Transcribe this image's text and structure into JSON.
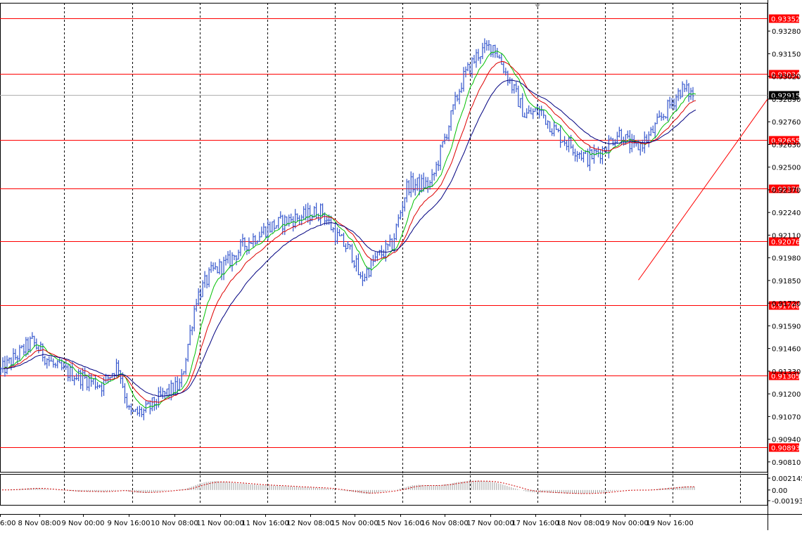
{
  "chart_data": [
    {
      "type": "candlestick",
      "yaxis": {
        "ylim": [
          0.90753,
          0.93442
        ],
        "ticks": [
          "0.93280",
          "0.93150",
          "0.93020",
          "0.92890",
          "0.92760",
          "0.92630",
          "0.92500",
          "0.92370",
          "0.92240",
          "0.92110",
          "0.91980",
          "0.91850",
          "0.91720",
          "0.91590",
          "0.91460",
          "0.91330",
          "0.91200",
          "0.91070",
          "0.90940",
          "0.90810"
        ],
        "current_price": "0.92915"
      },
      "xaxis": {
        "ticks": [
          "6:00",
          "8 Nov 08:00",
          "9 Nov 00:00",
          "9 Nov 16:00",
          "10 Nov 08:00",
          "11 Nov 00:00",
          "11 Nov 16:00",
          "12 Nov 08:00",
          "15 Nov 00:00",
          "15 Nov 16:00",
          "16 Nov 08:00",
          "17 Nov 00:00",
          "17 Nov 16:00",
          "18 Nov 08:00",
          "19 Nov 00:00",
          "19 Nov 16:00"
        ]
      },
      "horizontal_levels": [
        "0.93352",
        "0.93034",
        "0.92655",
        "0.92378",
        "0.92076",
        "0.91708",
        "0.91305",
        "0.90893"
      ],
      "level_values": [
        0.93352,
        0.93034,
        0.92655,
        0.92378,
        0.92076,
        0.91708,
        0.91305,
        0.90893
      ],
      "trendline": [
        [
          0.918525,
          0.915
        ],
        [
          0.9289,
          0.985
        ]
      ],
      "close_anchors": [
        [
          0,
          0.9133
        ],
        [
          0.04,
          0.915
        ],
        [
          0.07,
          0.9135
        ],
        [
          0.1,
          0.913
        ],
        [
          0.13,
          0.9125
        ],
        [
          0.15,
          0.9137
        ],
        [
          0.165,
          0.9108
        ],
        [
          0.185,
          0.911
        ],
        [
          0.21,
          0.912
        ],
        [
          0.23,
          0.9125
        ],
        [
          0.25,
          0.9175
        ],
        [
          0.27,
          0.919
        ],
        [
          0.29,
          0.9195
        ],
        [
          0.31,
          0.9205
        ],
        [
          0.34,
          0.9215
        ],
        [
          0.37,
          0.922
        ],
        [
          0.39,
          0.9222
        ],
        [
          0.41,
          0.9225
        ],
        [
          0.43,
          0.921
        ],
        [
          0.45,
          0.92
        ],
        [
          0.46,
          0.9185
        ],
        [
          0.48,
          0.9198
        ],
        [
          0.5,
          0.9205
        ],
        [
          0.52,
          0.924
        ],
        [
          0.55,
          0.924
        ],
        [
          0.57,
          0.927
        ],
        [
          0.59,
          0.93
        ],
        [
          0.61,
          0.9315
        ],
        [
          0.63,
          0.932
        ],
        [
          0.65,
          0.93
        ],
        [
          0.67,
          0.928
        ],
        [
          0.69,
          0.9282
        ],
        [
          0.71,
          0.927
        ],
        [
          0.73,
          0.9262
        ],
        [
          0.75,
          0.9255
        ],
        [
          0.77,
          0.926
        ],
        [
          0.79,
          0.927
        ],
        [
          0.81,
          0.926
        ],
        [
          0.83,
          0.9268
        ],
        [
          0.85,
          0.9282
        ],
        [
          0.87,
          0.9295
        ],
        [
          0.885,
          0.92915
        ]
      ],
      "moving_averages": [
        {
          "color": "#00c000",
          "period": 5
        },
        {
          "color": "#dd0000",
          "period": 10
        },
        {
          "color": "#000080",
          "period": 18
        }
      ],
      "candle_color": "#3355cc",
      "level_color": "#ff0000"
    },
    {
      "type": "histogram",
      "ylim": [
        -0.001935,
        0.002145
      ],
      "ticks": [
        "0.002145",
        "0.00",
        "-0.001935"
      ],
      "signal_color": "#cc0000",
      "bar_color": "#a0a0a0"
    }
  ]
}
